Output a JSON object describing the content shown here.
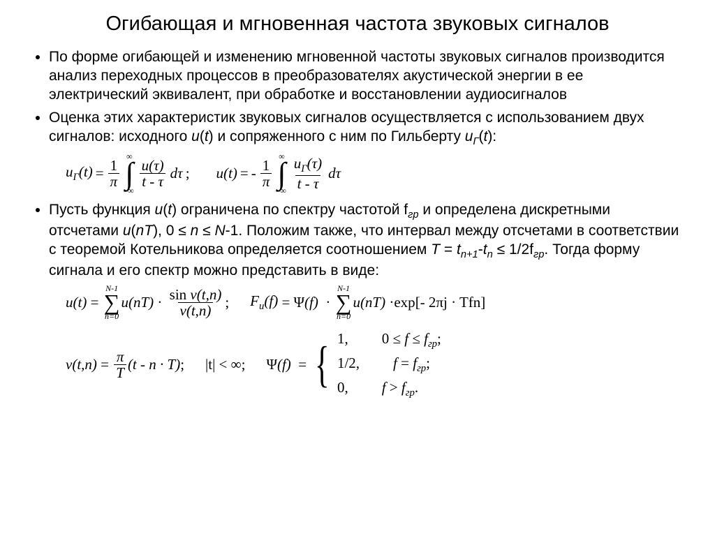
{
  "background_color": "#ffffff",
  "text_color": "#000000",
  "title_fontsize": 29,
  "body_fontsize": 21,
  "body_font": "Arial",
  "math_font": "Times New Roman",
  "title": "Огибающая и мгновенная частота звуковых сигналов",
  "bullets": {
    "b1": "По форме огибающей и изменению мгновенной частоты звуковых сигналов производится анализ переходных процессов в преобразователях акустической энергии в ее электрический эквивалент, при обработке и восстановлении аудиосигналов",
    "b2_pre": "Оценка этих характеристик звуковых сигналов осуществляется с использованием двух сигналов: исходного ",
    "b2_u": "u",
    "b2_t": "t",
    "b2_mid": ") и сопряженного с ним по Гильберту ",
    "b2_ug": "u",
    "b2_gsub": "Г",
    "b2_end": "):",
    "b3_pre": "Пусть функция ",
    "b3_u": "u",
    "b3_t": "t",
    "b3_mid1": ") ограничена по спектру частотой f",
    "b3_sub1": "гр",
    "b3_mid2": " и определена дискретными отсчетами ",
    "b3_unT": "u",
    "b3_nT": "nT",
    "b3_mid3": "), 0 ≤ ",
    "b3_n": "n",
    "b3_mid4": " ≤ ",
    "b3_N": "N",
    "b3_mid5": "-1. Положим также, что интервал между отсчетами в соответствии с теоремой Котельникова определяется соотношением ",
    "b3_T": "T",
    "b3_eq": " = ",
    "b3_tn1": "t",
    "b3_n1sub": "n+1",
    "b3_minus": "-",
    "b3_tn": "t",
    "b3_nsub": "n",
    "b3_le": " ≤ 1/2f",
    "b3_sub2": "гр",
    "b3_end": ". Тогда форму сигнала и его спектр можно представить в виде:"
  },
  "eq1": {
    "lhs1": "u",
    "sub_G": "Г",
    "arg_t": "t",
    "pi": "π",
    "one": "1",
    "inf": "∞",
    "ninf": "-∞",
    "num1": "u(τ)",
    "den1": "t - τ",
    "dtau": "dτ",
    "semi": ";",
    "lhs2": "u(t)",
    "minus": "-",
    "num2": "u",
    "num2_tau": "(τ)",
    "den2": "t - τ"
  },
  "eq2": {
    "ut": "u(t)",
    "eq": "=",
    "sum_top": "N-1",
    "sum_bot": "n=0",
    "unT": "u(nT)",
    "dot": "·",
    "sin": "sin",
    "vtn": "v(t,n)",
    "semi": ";",
    "Fu": "F",
    "Fu_sub": "u",
    "f": "f",
    "Psi": "Ψ",
    "exp": "exp",
    "expr": "[- 2πj · Tfn]"
  },
  "eq3": {
    "vtn": "v(t,n)",
    "eq": "=",
    "pi": "π",
    "T": "T",
    "body": "(t - n · T)",
    "semi": ";",
    "abs_t": "|t|",
    "lt": "<",
    "inf": "∞",
    "Psi": "Ψ",
    "f": "f",
    "case1_val": "1,",
    "case1_cond_pre": "0 ≤ ",
    "case1_cond_mid": " ≤ ",
    "case1_fgr": "f",
    "case1_sub": "гр",
    "case2_val": "1/2,",
    "case2_cond": " = ",
    "case3_val": "0,",
    "case3_cond": " > "
  }
}
